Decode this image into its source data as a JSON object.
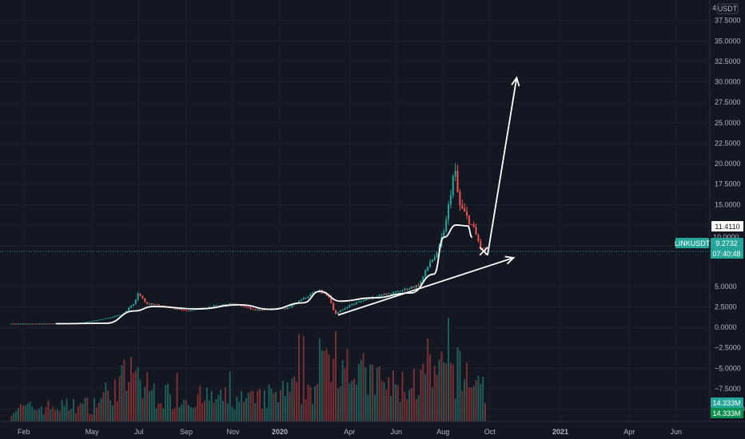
{
  "chart_data": {
    "type": "candlestick",
    "symbol": "LINKUSDT",
    "currency": "USDT",
    "y_axis": {
      "min": -11.5,
      "max": 40.0,
      "ticks": [
        {
          "value": 37.5,
          "label": "37.5000"
        },
        {
          "value": 35.0,
          "label": "35.0000"
        },
        {
          "value": 32.5,
          "label": "32.5000"
        },
        {
          "value": 30.0,
          "label": "30.0000"
        },
        {
          "value": 27.5,
          "label": "27.5000"
        },
        {
          "value": 25.0,
          "label": "25.0000"
        },
        {
          "value": 22.5,
          "label": "22.5000"
        },
        {
          "value": 20.0,
          "label": "20.0000"
        },
        {
          "value": 17.5,
          "label": "17.5000"
        },
        {
          "value": 15.0,
          "label": "15.0000"
        },
        {
          "value": 12.5,
          "label": "12.5000"
        },
        {
          "value": 10.0,
          "label": "10.0000"
        },
        {
          "value": 5.0,
          "label": "5.0000"
        },
        {
          "value": 2.5,
          "label": "2.5000"
        },
        {
          "value": 0.0,
          "label": "0.0000"
        },
        {
          "value": -2.5,
          "label": "−2.5000"
        },
        {
          "value": -5.0,
          "label": "−5.0000"
        },
        {
          "value": -7.5,
          "label": "−7.5000"
        },
        {
          "value": -10.0,
          "label": "−10.0000"
        }
      ]
    },
    "x_axis": {
      "start": "2019-01-01",
      "end": "2021-07-15",
      "ticks": [
        {
          "date": "2019-02-01",
          "label": "Feb",
          "bold": false
        },
        {
          "date": "2019-05-01",
          "label": "May",
          "bold": false
        },
        {
          "date": "2019-07-01",
          "label": "Jul",
          "bold": false
        },
        {
          "date": "2019-09-01",
          "label": "Sep",
          "bold": false
        },
        {
          "date": "2019-11-01",
          "label": "Nov",
          "bold": false
        },
        {
          "date": "2020-01-01",
          "label": "2020",
          "bold": true
        },
        {
          "date": "2020-04-01",
          "label": "Apr",
          "bold": false
        },
        {
          "date": "2020-06-01",
          "label": "Jun",
          "bold": false
        },
        {
          "date": "2020-08-01",
          "label": "Aug",
          "bold": false
        },
        {
          "date": "2020-10-01",
          "label": "Oct",
          "bold": false
        },
        {
          "date": "2021-01-01",
          "label": "2021",
          "bold": true
        },
        {
          "date": "2021-04-01",
          "label": "Apr",
          "bold": false
        },
        {
          "date": "2021-06-01",
          "label": "Jun",
          "bold": false
        }
      ]
    },
    "price_keypoints": [
      {
        "date": "2019-01-16",
        "value": 0.45
      },
      {
        "date": "2019-03-01",
        "value": 0.45
      },
      {
        "date": "2019-04-15",
        "value": 0.5
      },
      {
        "date": "2019-05-15",
        "value": 1.0
      },
      {
        "date": "2019-06-10",
        "value": 1.6
      },
      {
        "date": "2019-06-25",
        "value": 3.0
      },
      {
        "date": "2019-06-30",
        "value": 4.2
      },
      {
        "date": "2019-07-10",
        "value": 3.0
      },
      {
        "date": "2019-08-01",
        "value": 2.6
      },
      {
        "date": "2019-09-01",
        "value": 2.0
      },
      {
        "date": "2019-10-01",
        "value": 2.5
      },
      {
        "date": "2019-11-01",
        "value": 2.9
      },
      {
        "date": "2019-12-01",
        "value": 2.1
      },
      {
        "date": "2020-01-10",
        "value": 2.3
      },
      {
        "date": "2020-02-10",
        "value": 4.0
      },
      {
        "date": "2020-02-20",
        "value": 4.5
      },
      {
        "date": "2020-03-05",
        "value": 3.8
      },
      {
        "date": "2020-03-13",
        "value": 1.6
      },
      {
        "date": "2020-04-01",
        "value": 2.7
      },
      {
        "date": "2020-05-01",
        "value": 3.7
      },
      {
        "date": "2020-06-01",
        "value": 4.3
      },
      {
        "date": "2020-07-01",
        "value": 5.2
      },
      {
        "date": "2020-07-15",
        "value": 8.0
      },
      {
        "date": "2020-07-25",
        "value": 9.0
      },
      {
        "date": "2020-08-05",
        "value": 13.0
      },
      {
        "date": "2020-08-16",
        "value": 19.5
      },
      {
        "date": "2020-08-22",
        "value": 15.0
      },
      {
        "date": "2020-09-01",
        "value": 13.5
      },
      {
        "date": "2020-09-10",
        "value": 12.0
      },
      {
        "date": "2020-09-20",
        "value": 9.5
      },
      {
        "date": "2020-09-25",
        "value": 9.27
      }
    ],
    "volume_keypoints": [
      {
        "date": "2019-01-16",
        "value": 0.15
      },
      {
        "date": "2019-05-01",
        "value": 0.2
      },
      {
        "date": "2019-06-20",
        "value": 0.55
      },
      {
        "date": "2019-07-01",
        "value": 0.45
      },
      {
        "date": "2019-08-01",
        "value": 0.3
      },
      {
        "date": "2019-12-01",
        "value": 0.25
      },
      {
        "date": "2020-02-20",
        "value": 0.45
      },
      {
        "date": "2020-03-13",
        "value": 0.95
      },
      {
        "date": "2020-04-15",
        "value": 0.55
      },
      {
        "date": "2020-06-01",
        "value": 0.4
      },
      {
        "date": "2020-08-15",
        "value": 0.6
      },
      {
        "date": "2020-09-25",
        "value": 0.45
      }
    ],
    "drawings": {
      "curve": [
        {
          "date": "2019-03-15",
          "value": 0.45
        },
        {
          "date": "2019-05-20",
          "value": 0.5
        },
        {
          "date": "2019-06-25",
          "value": 2.0
        },
        {
          "date": "2019-07-20",
          "value": 2.55
        },
        {
          "date": "2019-09-15",
          "value": 2.25
        },
        {
          "date": "2019-11-10",
          "value": 2.75
        },
        {
          "date": "2019-12-20",
          "value": 2.2
        },
        {
          "date": "2020-02-01",
          "value": 3.0
        },
        {
          "date": "2020-02-22",
          "value": 4.4
        },
        {
          "date": "2020-03-20",
          "value": 3.2
        },
        {
          "date": "2020-05-01",
          "value": 3.6
        },
        {
          "date": "2020-06-20",
          "value": 4.2
        },
        {
          "date": "2020-07-20",
          "value": 6.5
        },
        {
          "date": "2020-08-02",
          "value": 11.0
        },
        {
          "date": "2020-08-18",
          "value": 12.5
        },
        {
          "date": "2020-09-02",
          "value": 12.4
        },
        {
          "date": "2020-09-08",
          "value": 11.0
        }
      ],
      "trendline": {
        "from": {
          "date": "2020-03-17",
          "value": 1.5
        },
        "to": {
          "date": "2020-11-01",
          "value": 8.5
        }
      },
      "arrow": {
        "from": {
          "date": "2020-09-28",
          "value": 8.8
        },
        "to": {
          "date": "2020-11-05",
          "value": 30.5
        }
      },
      "cross": {
        "date": "2020-09-23",
        "value": 9.3
      }
    },
    "last_price": 9.2732,
    "current_line": 11.411,
    "volume_last": "14.333M"
  },
  "labels": {
    "currency": "USDT",
    "line_tag": "11.4110",
    "symbol_tag": "LINKUSDT",
    "price_tag": "9.2732",
    "countdown": "07:40:48",
    "partial_tick": "4",
    "partial_tick_bottom": "10.0000",
    "volume_tag_1": "14.333M",
    "volume_tag_2": "14.333M"
  },
  "colors": {
    "background": "#131722",
    "up": "#26a69a",
    "down": "#ef5350",
    "grid": "#1e222d",
    "axis_text": "#b2b5be",
    "drawing": "#ffffff",
    "price_line": "#26a69a",
    "volume_up": "#1f5e58",
    "volume_down": "#7a2f33"
  }
}
